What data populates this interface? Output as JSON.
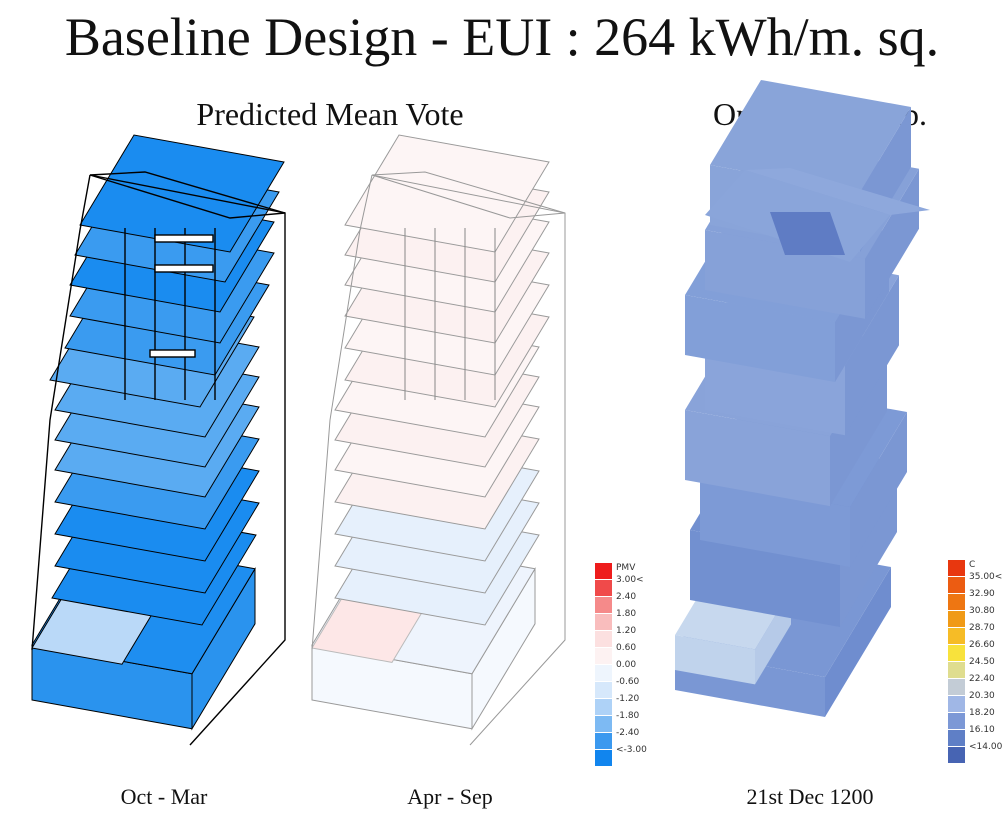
{
  "title": "Baseline Design - EUI : 264 kWh/m. sq.",
  "sections": {
    "pmv": "Predicted Mean Vote",
    "optemp": "Operative Temp."
  },
  "captions": {
    "oct_mar": "Oct - Mar",
    "apr_sep": "Apr - Sep",
    "dec": "21st Dec 1200"
  },
  "pmv_legend": {
    "header": "PMV",
    "labels": [
      "3.00<",
      "2.40",
      "1.80",
      "1.20",
      "0.60",
      "0.00",
      "-0.60",
      "-1.20",
      "-1.80",
      "-2.40",
      "<-3.00"
    ],
    "colors": [
      "#ee1c1c",
      "#f04a4a",
      "#f58a8a",
      "#f9bdbd",
      "#fce0e0",
      "#fdf2f2",
      "#eef5fd",
      "#d6e8fb",
      "#aed2f7",
      "#7dbaf3",
      "#3b99ef",
      "#1185ee"
    ]
  },
  "temp_legend": {
    "header": "C",
    "labels": [
      "35.00<",
      "32.90",
      "30.80",
      "28.70",
      "26.60",
      "24.50",
      "22.40",
      "20.30",
      "18.20",
      "16.10",
      "<14.00"
    ],
    "colors": [
      "#e8370f",
      "#ec5c12",
      "#ee7612",
      "#f09a16",
      "#f6bc26",
      "#f8e23c",
      "#dfdd8f",
      "#c3ccd6",
      "#a0b7e6",
      "#7c98d6",
      "#5f7fc6",
      "#4764b3"
    ]
  }
}
